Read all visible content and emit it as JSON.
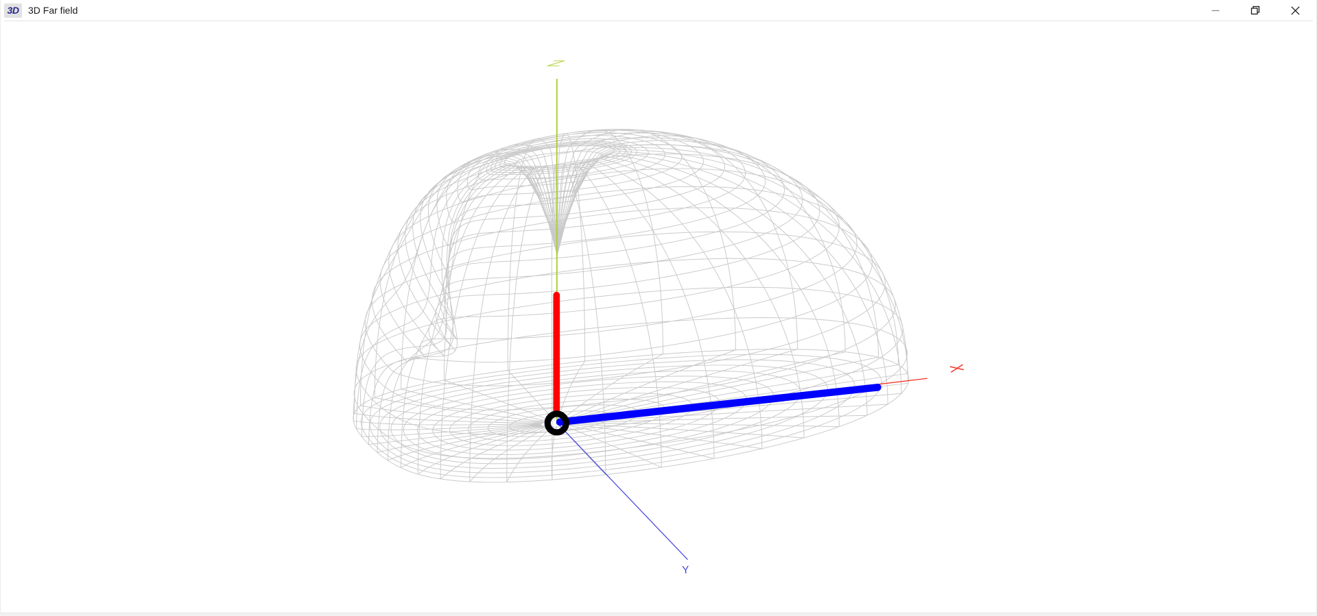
{
  "window": {
    "icon_badge": "3D",
    "title": "3D Far field",
    "controls": [
      {
        "name": "minimize"
      },
      {
        "name": "restore"
      },
      {
        "name": "close"
      }
    ]
  },
  "viewport": {
    "background_color": "#ffffff",
    "mesh_color": "#c9c9c9",
    "axes": {
      "x": {
        "label": "X",
        "color": "#f23020"
      },
      "y": {
        "label": "Y",
        "color": "#4646dd"
      },
      "z": {
        "label": "Z",
        "color": "#aed034"
      }
    },
    "antenna": {
      "vertical_element_color": "#ff0000",
      "horizontal_element_color": "#0000ff",
      "origin_marker_color": "#000000"
    },
    "pattern_description": "wireframe 3D far-field radiation pattern over ground disk"
  }
}
